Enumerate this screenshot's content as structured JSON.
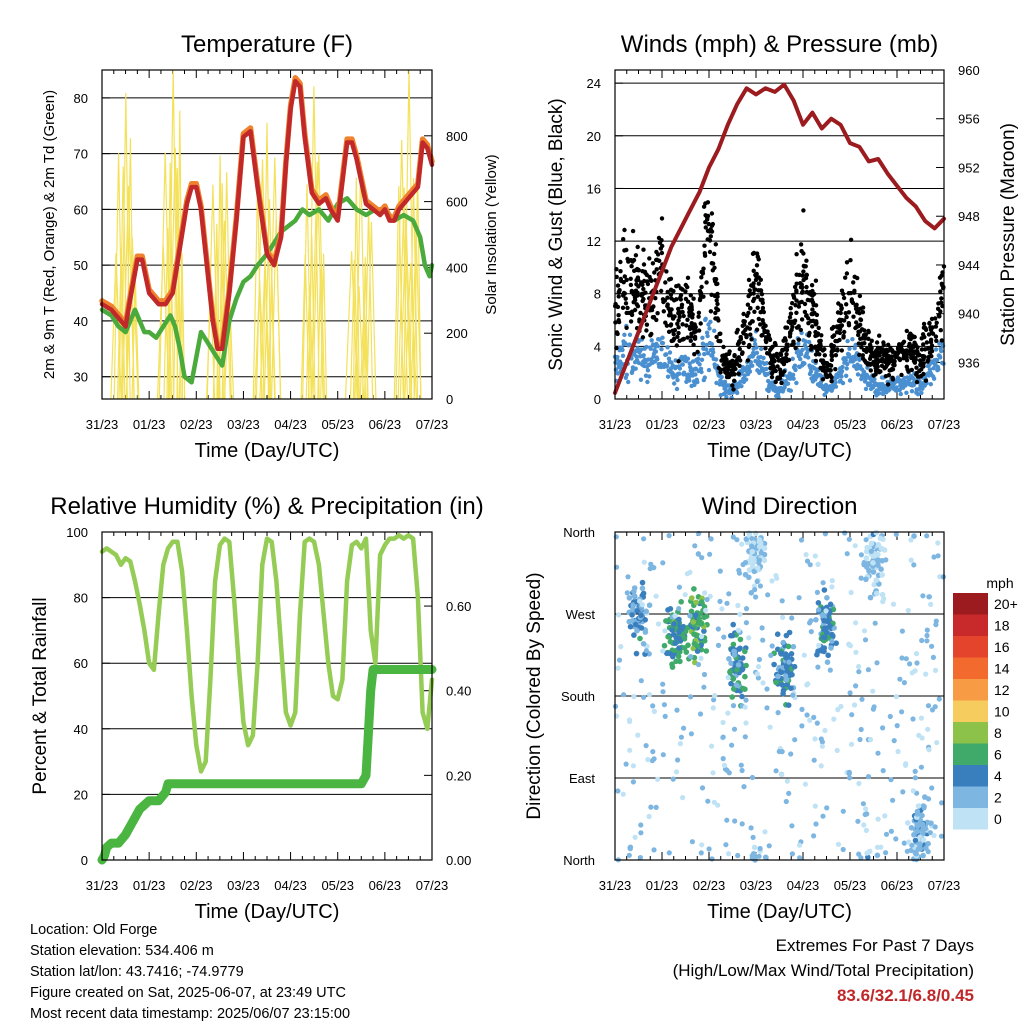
{
  "colors": {
    "temp_2m": "#c0282a",
    "temp_9m": "#f0822e",
    "dewpoint": "#4aaa3c",
    "solar": "#f4e15a",
    "wind": "#4a90d0",
    "gust": "#000000",
    "pressure": "#9b1b1e",
    "rh": "#95cc55",
    "precip": "#4ab540",
    "extremes_text": "#c0282a"
  },
  "footer": {
    "location": "Location: Old Forge",
    "elevation": "Station elevation: 534.406 m",
    "latlon": "Station lat/lon: 43.7416; -74.9779",
    "created": "Figure created on Sat, 2025-06-07, at 23:49 UTC",
    "recent": "Most recent data timestamp: 2025/06/07 23:15:00"
  },
  "extremes": {
    "title": "Extremes For Past 7 Days",
    "subtitle": "(High/Low/Max Wind/Total Precipitation)",
    "values": "83.6/32.1/6.8/0.45"
  },
  "chart_data": [
    {
      "type": "line",
      "title": "Temperature (F)",
      "xlabel": "Time (Day/UTC)",
      "ylabel": "2m & 9m T (Red, Orange) & 2m Td (Green)",
      "ylabel_right": "Solar Insolation (Yellow)",
      "xticks": [
        "31/23",
        "01/23",
        "02/23",
        "03/23",
        "04/23",
        "05/23",
        "06/23",
        "07/23"
      ],
      "xlim": [
        0,
        7
      ],
      "ylim": [
        26,
        85
      ],
      "yticks": [
        30,
        40,
        50,
        60,
        70,
        80
      ],
      "ylim_right": [
        0,
        1000
      ],
      "yticks_right": [
        0,
        200,
        400,
        600,
        800
      ],
      "series": [
        {
          "name": "2m T",
          "color": "temp_2m",
          "x": [
            0,
            0.2,
            0.4,
            0.5,
            0.6,
            0.75,
            0.85,
            1.0,
            1.2,
            1.35,
            1.5,
            1.65,
            1.8,
            1.9,
            2.0,
            2.1,
            2.25,
            2.35,
            2.45,
            2.55,
            2.7,
            2.85,
            3.0,
            3.15,
            3.3,
            3.5,
            3.65,
            3.8,
            3.9,
            4.0,
            4.1,
            4.2,
            4.3,
            4.45,
            4.6,
            4.75,
            4.85,
            5.0,
            5.1,
            5.2,
            5.3,
            5.4,
            5.6,
            5.75,
            5.9,
            6.0,
            6.1,
            6.2,
            6.3,
            6.5,
            6.7,
            6.8,
            6.9,
            7.0
          ],
          "values": [
            43,
            42,
            40,
            39,
            44,
            51,
            51,
            45,
            43,
            43,
            45,
            53,
            61,
            64,
            64,
            60,
            48,
            40,
            35,
            35,
            45,
            58,
            73,
            74,
            64,
            52,
            50,
            55,
            68,
            78,
            83,
            82,
            73,
            63,
            61,
            62,
            60,
            58,
            65,
            72,
            72,
            69,
            61,
            60,
            59,
            60,
            58,
            58,
            60,
            62,
            64,
            72,
            71,
            68
          ]
        },
        {
          "name": "2m Td",
          "color": "dewpoint",
          "x": [
            0,
            0.2,
            0.35,
            0.5,
            0.6,
            0.7,
            0.8,
            0.9,
            1.0,
            1.15,
            1.3,
            1.45,
            1.55,
            1.65,
            1.75,
            1.9,
            2.1,
            2.25,
            2.4,
            2.55,
            2.7,
            2.85,
            3.0,
            3.15,
            3.3,
            3.5,
            3.65,
            3.8,
            3.95,
            4.1,
            4.25,
            4.4,
            4.6,
            4.8,
            5.0,
            5.2,
            5.4,
            5.6,
            5.8,
            6.0,
            6.2,
            6.4,
            6.6,
            6.75,
            6.85,
            6.95,
            7.0
          ],
          "values": [
            42,
            41,
            39,
            38,
            40,
            42,
            40,
            38,
            38,
            37,
            39,
            41,
            39,
            35,
            30,
            29,
            38,
            36,
            34,
            32,
            40,
            44,
            47,
            48,
            50,
            52,
            54,
            56,
            57,
            58,
            60,
            59,
            60,
            58,
            61,
            62,
            60,
            59,
            60,
            60,
            58,
            59,
            58,
            55,
            50,
            48,
            50
          ]
        }
      ],
      "solar_peaks": [
        {
          "x": 0.5,
          "value": 930
        },
        {
          "x": 1.5,
          "value": 1000
        },
        {
          "x": 2.5,
          "value": 740
        },
        {
          "x": 3.5,
          "value": 840
        },
        {
          "x": 4.5,
          "value": 950
        },
        {
          "x": 5.5,
          "value": 720
        },
        {
          "x": 6.5,
          "value": 1000
        }
      ]
    },
    {
      "type": "scatter",
      "title": "Winds (mph) & Pressure (mb)",
      "xlabel": "Time (Day/UTC)",
      "ylabel": "Sonic Wind & Gust (Blue, Black)",
      "ylabel_right": "Station Pressure (Maroon)",
      "xticks": [
        "31/23",
        "01/23",
        "02/23",
        "03/23",
        "04/23",
        "05/23",
        "06/23",
        "07/23"
      ],
      "xlim": [
        0,
        7
      ],
      "ylim": [
        0,
        25
      ],
      "yticks": [
        0,
        4,
        8,
        12,
        16,
        20,
        24
      ],
      "ylim_right": [
        933,
        960
      ],
      "yticks_right": [
        936,
        940,
        944,
        948,
        952,
        956,
        960
      ],
      "pressure": {
        "x": [
          0,
          0.2,
          0.4,
          0.6,
          0.8,
          1.0,
          1.2,
          1.4,
          1.6,
          1.8,
          2.0,
          2.2,
          2.4,
          2.6,
          2.8,
          3.0,
          3.2,
          3.4,
          3.6,
          3.8,
          4.0,
          4.2,
          4.4,
          4.6,
          4.8,
          5.0,
          5.2,
          5.4,
          5.6,
          5.8,
          6.0,
          6.2,
          6.4,
          6.6,
          6.8,
          7.0
        ],
        "values": [
          933.5,
          935.5,
          937.5,
          939.5,
          941.5,
          943.5,
          945.5,
          947,
          948.5,
          950,
          952,
          953.5,
          955.5,
          957.2,
          958.5,
          958,
          958.5,
          958.2,
          958.8,
          957.5,
          955.5,
          956.5,
          955.2,
          956,
          955.5,
          954,
          953.7,
          952.5,
          952.7,
          951.5,
          950.5,
          949.5,
          948.8,
          947.6,
          947,
          947.8
        ]
      },
      "wind_envelope": {
        "x": [
          0,
          0.25,
          0.5,
          0.75,
          1.0,
          1.25,
          1.5,
          1.75,
          2.0,
          2.25,
          2.5,
          2.75,
          3.0,
          3.25,
          3.5,
          3.75,
          4.0,
          4.25,
          4.5,
          4.75,
          5.0,
          5.25,
          5.5,
          5.75,
          6.0,
          6.25,
          6.5,
          6.75,
          7.0
        ],
        "gust_mean": [
          7,
          9,
          8,
          8,
          10,
          6,
          7,
          5,
          14,
          3,
          2,
          5,
          9,
          4,
          2,
          5,
          10,
          6,
          2,
          5,
          9,
          5,
          3,
          3,
          3,
          4,
          3,
          5,
          9
        ],
        "wind_mean": [
          2.5,
          3.5,
          3,
          3,
          3.5,
          2,
          2.5,
          2,
          5,
          1,
          0.5,
          2,
          3.5,
          1.5,
          0.5,
          2,
          4,
          2,
          0.5,
          1.5,
          3.5,
          2,
          1,
          1,
          1,
          1.5,
          1,
          2,
          3.5
        ]
      }
    },
    {
      "type": "line",
      "title": "Relative Humidity (%) & Precipitation (in)",
      "xlabel": "Time (Day/UTC)",
      "ylabel": "Percent & Total Rainfall",
      "xticks": [
        "31/23",
        "01/23",
        "02/23",
        "03/23",
        "04/23",
        "05/23",
        "06/23",
        "07/23"
      ],
      "xlim": [
        0,
        7
      ],
      "ylim": [
        0,
        100
      ],
      "yticks": [
        0,
        20,
        40,
        60,
        80,
        100
      ],
      "ylim_right": [
        0,
        0.775
      ],
      "yticks_right": [
        "0.00",
        "0.20",
        "0.40",
        "0.60"
      ],
      "series": [
        {
          "name": "RH",
          "color": "rh",
          "x": [
            0,
            0.1,
            0.2,
            0.3,
            0.4,
            0.5,
            0.6,
            0.7,
            0.8,
            0.9,
            1.0,
            1.1,
            1.2,
            1.3,
            1.4,
            1.5,
            1.6,
            1.7,
            1.8,
            1.9,
            2.0,
            2.1,
            2.2,
            2.3,
            2.4,
            2.5,
            2.6,
            2.7,
            2.8,
            2.9,
            3.0,
            3.1,
            3.2,
            3.3,
            3.4,
            3.5,
            3.6,
            3.7,
            3.8,
            3.9,
            4.0,
            4.1,
            4.2,
            4.3,
            4.4,
            4.5,
            4.6,
            4.7,
            4.8,
            4.9,
            5.0,
            5.1,
            5.2,
            5.3,
            5.4,
            5.5,
            5.6,
            5.7,
            5.8,
            5.9,
            6.0,
            6.1,
            6.2,
            6.3,
            6.4,
            6.5,
            6.6,
            6.7,
            6.8,
            6.9,
            7.0
          ],
          "values": [
            94,
            95,
            94,
            93,
            90,
            92,
            91,
            85,
            78,
            70,
            60,
            58,
            75,
            90,
            95,
            97,
            97,
            88,
            70,
            50,
            35,
            27,
            30,
            55,
            85,
            96,
            98,
            97,
            80,
            60,
            42,
            35,
            38,
            60,
            90,
            98,
            97,
            85,
            65,
            45,
            41,
            45,
            75,
            97,
            98,
            97,
            90,
            75,
            60,
            50,
            49,
            55,
            85,
            96,
            97,
            95,
            98,
            70,
            60,
            93,
            96,
            98,
            98,
            99,
            98,
            99,
            98,
            80,
            45,
            40,
            55
          ]
        },
        {
          "name": "Total Rainfall",
          "color": "precip",
          "x": [
            0,
            0.05,
            0.1,
            0.2,
            0.35,
            0.5,
            0.6,
            0.7,
            0.8,
            0.9,
            1.0,
            1.2,
            1.35,
            1.4,
            1.5,
            1.6,
            2.0,
            3.0,
            4.0,
            5.0,
            5.5,
            5.6,
            5.65,
            5.7,
            5.75,
            5.8,
            6.0,
            6.5,
            7.0
          ],
          "values": [
            0,
            0.01,
            0.03,
            0.04,
            0.04,
            0.06,
            0.08,
            0.1,
            0.12,
            0.13,
            0.14,
            0.14,
            0.16,
            0.18,
            0.18,
            0.18,
            0.18,
            0.18,
            0.18,
            0.18,
            0.18,
            0.2,
            0.3,
            0.4,
            0.45,
            0.45,
            0.45,
            0.45,
            0.45
          ]
        }
      ]
    },
    {
      "type": "scatter",
      "title": "Wind Direction",
      "xlabel": "Time (Day/UTC)",
      "ylabel": "Direction (Colored By Speed)",
      "xticks": [
        "31/23",
        "01/23",
        "02/23",
        "03/23",
        "04/23",
        "05/23",
        "06/23",
        "07/23"
      ],
      "xlim": [
        0,
        7
      ],
      "ylim": [
        0,
        360
      ],
      "yticks": [
        "North",
        "East",
        "South",
        "West",
        "North"
      ],
      "legend": {
        "title": "mph",
        "labels": [
          "20+",
          "18",
          "16",
          "14",
          "12",
          "10",
          "8",
          "6",
          "4",
          "2",
          "0"
        ],
        "colors": [
          "#9b1b1e",
          "#c8292b",
          "#e4432c",
          "#f26a2e",
          "#f89b45",
          "#f6cc5e",
          "#8cc24a",
          "#3faa6a",
          "#3a7fbd",
          "#7eb6e2",
          "#bfe2f5"
        ]
      },
      "clusters": [
        {
          "x": 0.5,
          "dir": 270,
          "speed": 3
        },
        {
          "x": 1.3,
          "dir": 250,
          "speed": 5
        },
        {
          "x": 1.75,
          "dir": 260,
          "speed": 6
        },
        {
          "x": 2.6,
          "dir": 215,
          "speed": 4
        },
        {
          "x": 3.6,
          "dir": 210,
          "speed": 4
        },
        {
          "x": 4.5,
          "dir": 260,
          "speed": 4
        },
        {
          "x": 3.0,
          "dir": 340,
          "speed": 1
        },
        {
          "x": 5.5,
          "dir": 330,
          "speed": 1
        },
        {
          "x": 6.5,
          "dir": 30,
          "speed": 2
        }
      ]
    }
  ]
}
